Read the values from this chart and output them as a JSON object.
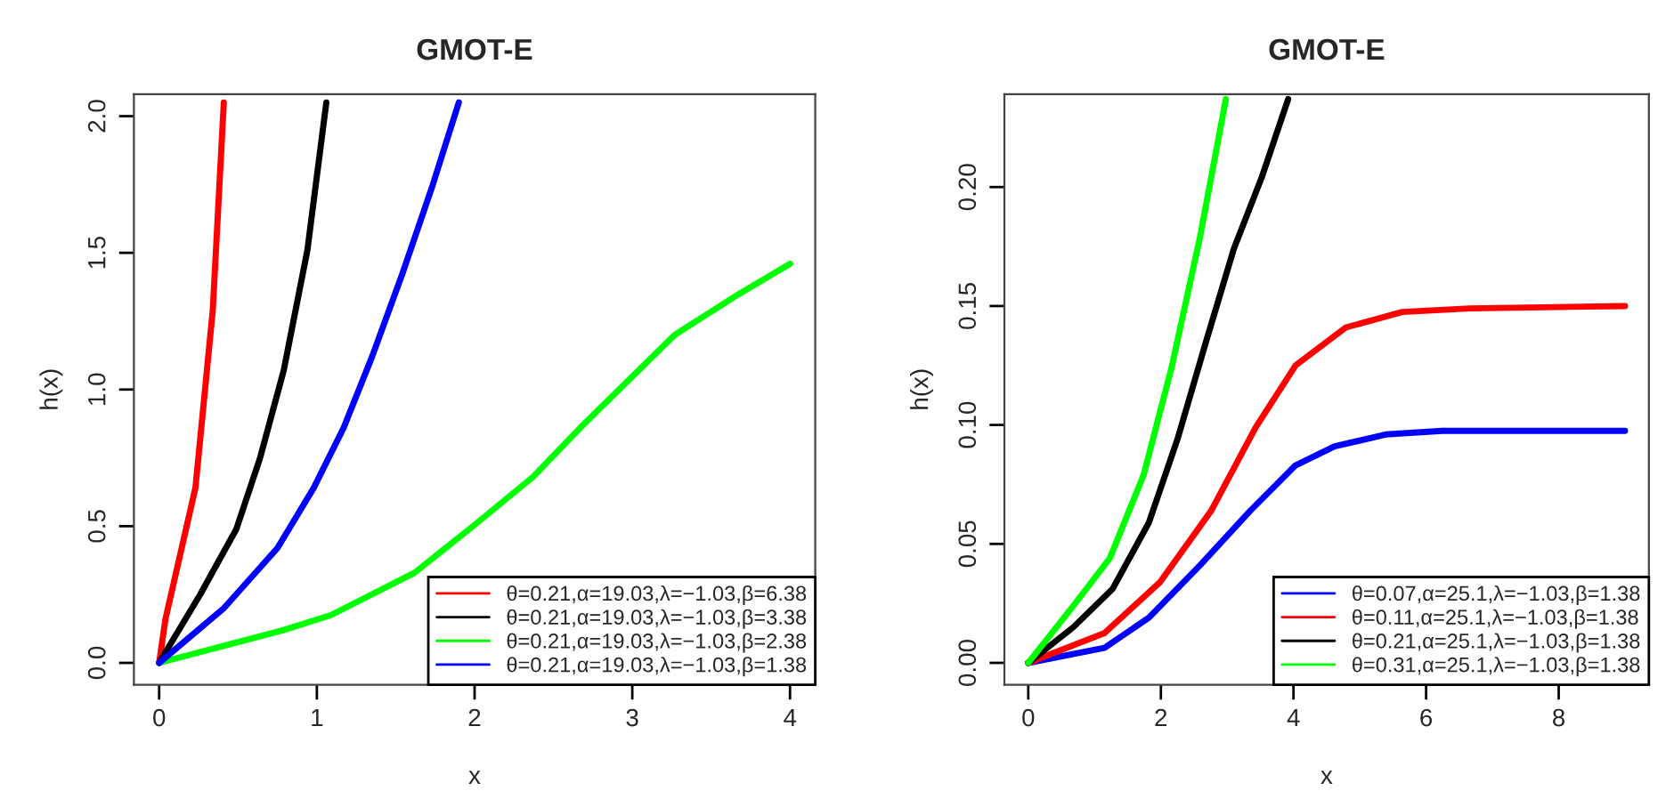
{
  "chart_data": [
    {
      "type": "line",
      "title": "GMOT-E",
      "xlabel": "x",
      "ylabel": "h(x)",
      "xlim": [
        -0.16,
        4.16
      ],
      "xticks": [
        0,
        1,
        2,
        3,
        4
      ],
      "ylim": [
        -0.08,
        2.08
      ],
      "yticks": [
        {
          "value": 0,
          "label": "0.0"
        },
        {
          "value": 0.5,
          "label": "0.5"
        },
        {
          "value": 1,
          "label": "1.0"
        },
        {
          "value": 1.5,
          "label": "1.5"
        },
        {
          "value": 2,
          "label": "2.0"
        }
      ],
      "grid": false,
      "legend": "bottom right",
      "line_style": "solid",
      "marker": "none",
      "series": [
        {
          "name": "θ=0.21,α=19.03,λ=−1.03,β=6.38",
          "color": "#ff0000",
          "x": [
            0,
            0.04,
            0.23,
            0.34,
            0.41
          ],
          "values": [
            0,
            0.16,
            0.64,
            1.29,
            2.05
          ]
        },
        {
          "name": "θ=0.21,α=19.03,λ=−1.03,β=3.38",
          "color": "#000000",
          "x": [
            0,
            0.26,
            0.49,
            0.64,
            0.79,
            0.94,
            1.06
          ],
          "values": [
            0,
            0.25,
            0.49,
            0.75,
            1.07,
            1.51,
            2.05
          ]
        },
        {
          "name": "θ=0.21,α=19.03,λ=−1.03,β=2.38",
          "color": "#00ff00",
          "x": [
            0,
            0.79,
            1.09,
            1.62,
            1.99,
            2.37,
            2.67,
            3.04,
            3.27,
            3.65,
            4.0
          ],
          "values": [
            0,
            0.12,
            0.175,
            0.33,
            0.5,
            0.68,
            0.86,
            1.07,
            1.2,
            1.34,
            1.46
          ]
        },
        {
          "name": "θ=0.21,α=19.03,λ=−1.03,β=1.38",
          "color": "#0000ff",
          "x": [
            0,
            0.41,
            0.75,
            0.98,
            1.17,
            1.35,
            1.54,
            1.73,
            1.9
          ],
          "values": [
            0,
            0.2,
            0.42,
            0.64,
            0.86,
            1.12,
            1.42,
            1.74,
            2.05
          ]
        }
      ]
    },
    {
      "type": "line",
      "title": "GMOT-E",
      "xlabel": "x",
      "ylabel": "h(x)",
      "xlim": [
        -0.36,
        9.36
      ],
      "xticks": [
        0,
        2,
        4,
        6,
        8
      ],
      "ylim": [
        -0.0092,
        0.239
      ],
      "yticks": [
        {
          "value": 0,
          "label": "0.00"
        },
        {
          "value": 0.05,
          "label": "0.05"
        },
        {
          "value": 0.1,
          "label": "0.10"
        },
        {
          "value": 0.15,
          "label": "0.15"
        },
        {
          "value": 0.2,
          "label": "0.20"
        }
      ],
      "grid": false,
      "legend": "bottom right",
      "line_style": "solid",
      "marker": "none",
      "series": [
        {
          "name": "θ=0.07,α=25.1,λ=−1.03,β=1.38",
          "color": "#0000ff",
          "x": [
            0,
            1.15,
            1.82,
            2.59,
            3.35,
            4.03,
            4.62,
            5.39,
            6.24,
            9.0
          ],
          "values": [
            0,
            0.0063,
            0.019,
            0.041,
            0.064,
            0.083,
            0.091,
            0.096,
            0.0975,
            0.0975
          ]
        },
        {
          "name": "θ=0.11,α=25.1,λ=−1.03,β=1.38",
          "color": "#ff0000",
          "x": [
            0,
            1.15,
            1.99,
            2.76,
            3.43,
            4.03,
            4.79,
            5.64,
            6.66,
            9.0
          ],
          "values": [
            0,
            0.0125,
            0.034,
            0.064,
            0.099,
            0.125,
            0.141,
            0.1475,
            0.149,
            0.15
          ]
        },
        {
          "name": "θ=0.21,α=25.1,λ=−1.03,β=1.38",
          "color": "#000000",
          "x": [
            0,
            0.68,
            1.27,
            1.82,
            2.25,
            2.67,
            3.1,
            3.52,
            3.92
          ],
          "values": [
            0,
            0.015,
            0.031,
            0.059,
            0.094,
            0.134,
            0.174,
            0.204,
            0.237
          ]
        },
        {
          "name": "θ=0.31,α=25.1,λ=−1.03,β=1.38",
          "color": "#00ff00",
          "x": [
            0,
            0.68,
            1.23,
            1.74,
            2.16,
            2.59,
            2.98
          ],
          "values": [
            0,
            0.024,
            0.044,
            0.079,
            0.124,
            0.179,
            0.237
          ]
        }
      ]
    }
  ]
}
